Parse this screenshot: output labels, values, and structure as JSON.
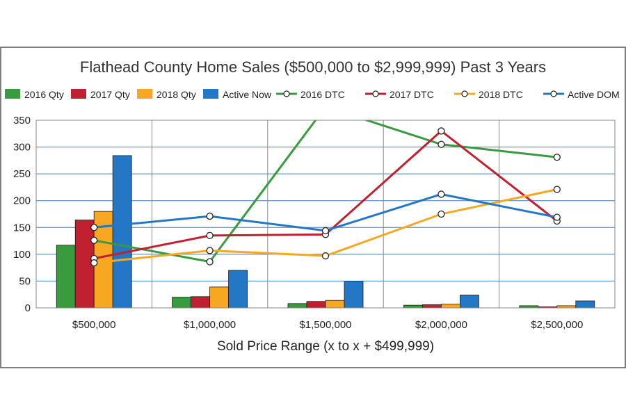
{
  "chart_data": {
    "type": "bar",
    "title": "Flathead County Home Sales ($500,000 to $2,999,999) Past 3 Years",
    "xlabel": "Sold Price Range (x to x + $499,999)",
    "ylabel": "",
    "ylim": [
      0,
      350
    ],
    "yticks": [
      "0",
      "50",
      "100",
      "150",
      "200",
      "250",
      "300",
      "350"
    ],
    "grid": true,
    "legend_position": "top",
    "categories": [
      "$500,000",
      "$1,000,000",
      "$1,500,000",
      "$2,000,000",
      "$2,500,000"
    ],
    "series": [
      {
        "name": "2016 Qty",
        "kind": "bar",
        "color": "#3a9a3e",
        "values": [
          117,
          20,
          8,
          5,
          4
        ]
      },
      {
        "name": "2017 Qty",
        "kind": "bar",
        "color": "#c0202f",
        "values": [
          164,
          21,
          12,
          6,
          2
        ]
      },
      {
        "name": "2018 Qty",
        "kind": "bar",
        "color": "#f7a823",
        "values": [
          180,
          39,
          14,
          7,
          4
        ]
      },
      {
        "name": "Active Now",
        "kind": "bar",
        "color": "#2477c4",
        "values": [
          284,
          70,
          49,
          24,
          13
        ]
      },
      {
        "name": "2016 DTC",
        "kind": "line",
        "color": "#3a9a3e",
        "values": [
          126,
          86,
          375,
          305,
          281
        ]
      },
      {
        "name": "2017 DTC",
        "kind": "line",
        "color": "#c0202f",
        "values": [
          92,
          135,
          137,
          330,
          162
        ]
      },
      {
        "name": "2018 DTC",
        "kind": "line",
        "color": "#f7a823",
        "values": [
          84,
          107,
          97,
          175,
          221
        ]
      },
      {
        "name": "Active DOM",
        "kind": "line",
        "color": "#2477c4",
        "values": [
          150,
          171,
          144,
          212,
          169
        ]
      }
    ]
  }
}
